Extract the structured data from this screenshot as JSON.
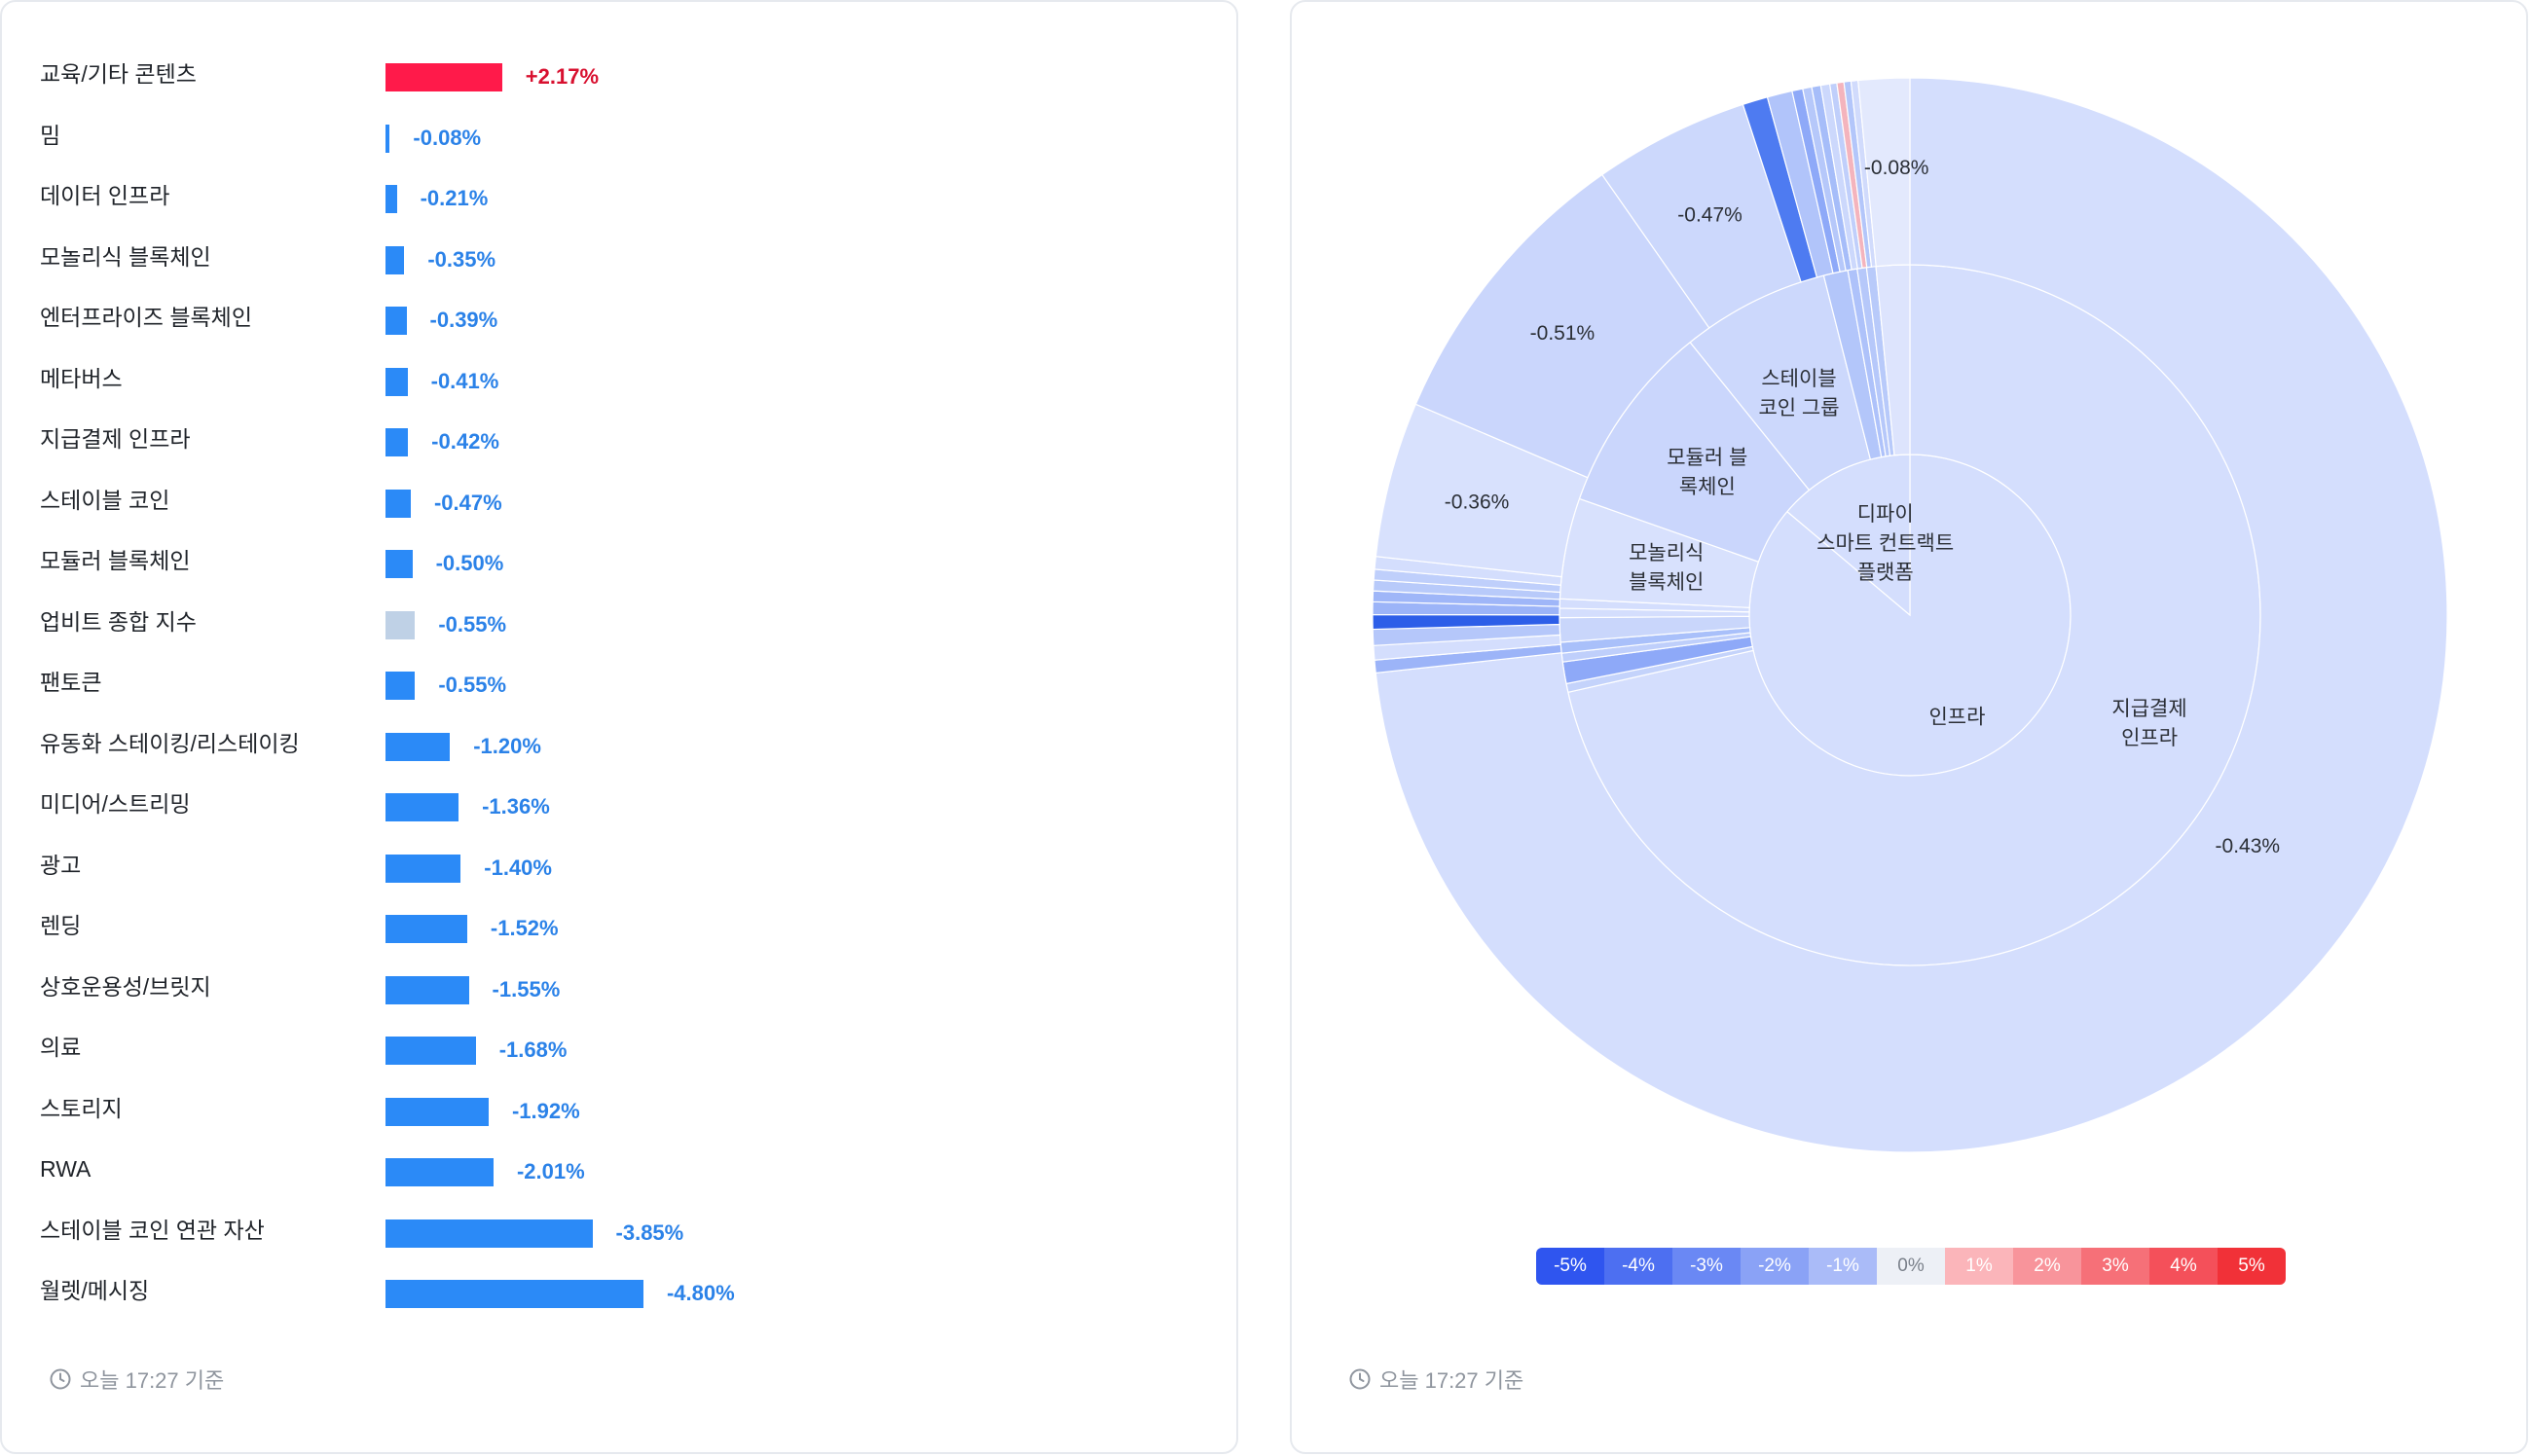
{
  "chart_data": [
    {
      "type": "bar",
      "orientation": "horizontal",
      "categories": [
        "교육/기타 콘텐츠",
        "밈",
        "데이터 인프라",
        "모놀리식 블록체인",
        "엔터프라이즈 블록체인",
        "메타버스",
        "지급결제 인프라",
        "스테이블 코인",
        "모듈러 블록체인",
        "업비트 종합 지수",
        "팬토큰",
        "유동화 스테이킹/리스테이킹",
        "미디어/스트리밍",
        "광고",
        "렌딩",
        "상호운용성/브릿지",
        "의료",
        "스토리지",
        "RWA",
        "스테이블 코인 연관 자산",
        "월렛/메시징"
      ],
      "values": [
        2.17,
        -0.08,
        -0.21,
        -0.35,
        -0.39,
        -0.41,
        -0.42,
        -0.47,
        -0.5,
        -0.55,
        -0.55,
        -1.2,
        -1.36,
        -1.4,
        -1.52,
        -1.55,
        -1.68,
        -1.92,
        -2.01,
        -3.85,
        -4.8
      ],
      "value_labels": [
        "+2.17%",
        "-0.08%",
        "-0.21%",
        "-0.35%",
        "-0.39%",
        "-0.41%",
        "-0.42%",
        "-0.47%",
        "-0.50%",
        "-0.55%",
        "-0.55%",
        "-1.20%",
        "-1.36%",
        "-1.40%",
        "-1.52%",
        "-1.55%",
        "-1.68%",
        "-1.92%",
        "-2.01%",
        "-3.85%",
        "-4.80%"
      ],
      "highlight_category": "업비트 종합 지수",
      "colors": {
        "positive": "#ff1a4a",
        "negative": "#2b8af7",
        "index": "#bfd1e6",
        "positive_text": "#d8102f",
        "negative_text": "#2b82e8"
      },
      "title": "",
      "xlabel": "",
      "ylabel": ""
    },
    {
      "type": "sunburst",
      "inner_ring": [
        {
          "label": "인프라",
          "share": 0.8615
        },
        {
          "label": "디파이\n스마트 컨트랙트\n플랫폼",
          "share": 0.1385
        }
      ],
      "middle_ring": [
        {
          "label": "지급결제\n인프라",
          "share": 0.715
        },
        {
          "label": "",
          "share": 0.004
        },
        {
          "label": "",
          "share": 0.01
        },
        {
          "label": "",
          "share": 0.004
        },
        {
          "label": "",
          "share": 0.005
        },
        {
          "label": "",
          "share": 0.0112
        },
        {
          "label": "",
          "share": 0.0043
        },
        {
          "label": "",
          "share": 0.0043
        },
        {
          "label": "모놀리식\n블록체인",
          "share": 0.0465
        },
        {
          "label": "모듈러 블\n록체인",
          "share": 0.0882
        },
        {
          "label": "스테이블\n코인 그룹",
          "share": 0.0684
        },
        {
          "label": "",
          "share": 0.0112
        },
        {
          "label": "",
          "share": 0.0043
        },
        {
          "label": "",
          "share": 0.0043
        },
        {
          "label": "",
          "share": 0.0043
        },
        {
          "label": "",
          "share": 0.0155
        }
      ],
      "outer_ring": [
        {
          "label": "-0.43%",
          "share": 0.7285
        },
        {
          "label": "",
          "share": 0.0038
        },
        {
          "label": "",
          "share": 0.0043
        },
        {
          "label": "",
          "share": 0.0048
        },
        {
          "label": "",
          "share": 0.0043
        },
        {
          "label": "",
          "share": 0.0038
        },
        {
          "label": "",
          "share": 0.0032
        },
        {
          "label": "",
          "share": 0.0032
        },
        {
          "label": "",
          "share": 0.0032
        },
        {
          "label": "",
          "share": 0.0038
        },
        {
          "label": "-0.36%",
          "share": 0.0465
        },
        {
          "label": "-0.51%",
          "share": 0.0882
        },
        {
          "label": "-0.47%",
          "share": 0.0465
        },
        {
          "label": "",
          "share": 0.0075
        },
        {
          "label": "",
          "share": 0.0075
        },
        {
          "label": "",
          "share": 0.0032
        },
        {
          "label": "",
          "share": 0.0027
        },
        {
          "label": "",
          "share": 0.0027
        },
        {
          "label": "",
          "share": 0.0027
        },
        {
          "label": "",
          "share": 0.0021
        },
        {
          "label": "",
          "share": 0.0021
        },
        {
          "label": "",
          "share": 0.0021
        },
        {
          "label": "",
          "share": 0.0021
        },
        {
          "label": "-0.08%",
          "share": 0.0153
        }
      ],
      "ring_colors": {
        "inner": [
          "#d4defd",
          "#d4defd"
        ],
        "middle": [
          "#d4defd",
          "#c4d3fb",
          "#8ea9f8",
          "#bfcffb",
          "#a9c0fa",
          "#c9d6fb",
          "#d4defd",
          "#d4defd",
          "#d8e1fd",
          "#cad6fc",
          "#ccd8fc",
          "#b3c6fa",
          "#aec2fa",
          "#b6c8fa",
          "#b8cafa",
          "#dde4fd"
        ],
        "outer": [
          "#d4defd",
          "#9cb4f8",
          "#d4defd",
          "#b5c7fa",
          "#2d5ee8",
          "#9cb4f8",
          "#9fb6f8",
          "#b8cafa",
          "#bfcffb",
          "#d4defd",
          "#d8e1fd",
          "#cad6fc",
          "#ccd8fc",
          "#4e7bf1",
          "#b1c4fa",
          "#8ea9f8",
          "#b6c8fa",
          "#a6bdf9",
          "#ccd8fc",
          "#c0cffb",
          "#f4b4bd",
          "#b3c6fa",
          "#d1dbfc",
          "#e3e9fd"
        ]
      }
    }
  ],
  "legend": {
    "labels": [
      "-5%",
      "-4%",
      "-3%",
      "-2%",
      "-1%",
      "0%",
      "1%",
      "2%",
      "3%",
      "4%",
      "5%"
    ],
    "colors": [
      "#2f55ef",
      "#4d6ff1",
      "#6a88f4",
      "#8aa2f6",
      "#aabbf8",
      "#edf0f6",
      "#fbb5ba",
      "#f8949b",
      "#f67078",
      "#f4505a",
      "#f13138"
    ]
  },
  "left_panel": {
    "timestamp": "오늘 17:27 기준"
  },
  "right_panel": {
    "timestamp": "오늘 17:27 기준"
  }
}
